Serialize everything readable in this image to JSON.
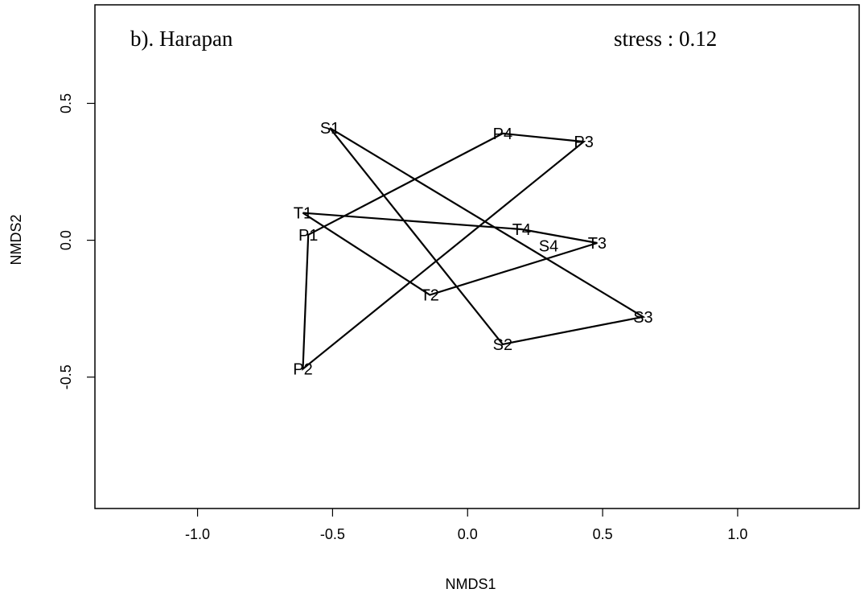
{
  "chart_data": {
    "type": "scatter",
    "panel_label": "b). Harapan",
    "stress_text": "stress : 0.12",
    "xlabel": "NMDS1",
    "ylabel": "NMDS2",
    "xlim": [
      -1.38,
      1.45
    ],
    "ylim": [
      -0.98,
      0.86
    ],
    "xticks": [
      -1.0,
      -0.5,
      0.0,
      0.5,
      1.0
    ],
    "xtick_labels": [
      "-1.0",
      "-0.5",
      "0.0",
      "0.5",
      "1.0"
    ],
    "yticks": [
      -0.5,
      0.0,
      0.5
    ],
    "ytick_labels": [
      "-0.5",
      "0.0",
      "0.5"
    ],
    "points": [
      {
        "label": "P1",
        "x": -0.59,
        "y": 0.02
      },
      {
        "label": "P2",
        "x": -0.61,
        "y": -0.47
      },
      {
        "label": "P3",
        "x": 0.43,
        "y": 0.36
      },
      {
        "label": "P4",
        "x": 0.13,
        "y": 0.39
      },
      {
        "label": "S1",
        "x": -0.51,
        "y": 0.41
      },
      {
        "label": "S2",
        "x": 0.13,
        "y": -0.38
      },
      {
        "label": "S3",
        "x": 0.65,
        "y": -0.28
      },
      {
        "label": "S4",
        "x": 0.3,
        "y": -0.02
      },
      {
        "label": "T1",
        "x": -0.61,
        "y": 0.1
      },
      {
        "label": "T2",
        "x": -0.14,
        "y": -0.2
      },
      {
        "label": "T3",
        "x": 0.48,
        "y": -0.01
      },
      {
        "label": "T4",
        "x": 0.2,
        "y": 0.04
      }
    ],
    "polygons": [
      {
        "group": "P",
        "order": [
          "P1",
          "P4",
          "P3",
          "P2"
        ]
      },
      {
        "group": "S",
        "order": [
          "S1",
          "S3",
          "S2"
        ]
      },
      {
        "group": "T",
        "order": [
          "T1",
          "T4",
          "T3",
          "T2"
        ]
      }
    ],
    "grid": false,
    "line_color": "#000000"
  }
}
